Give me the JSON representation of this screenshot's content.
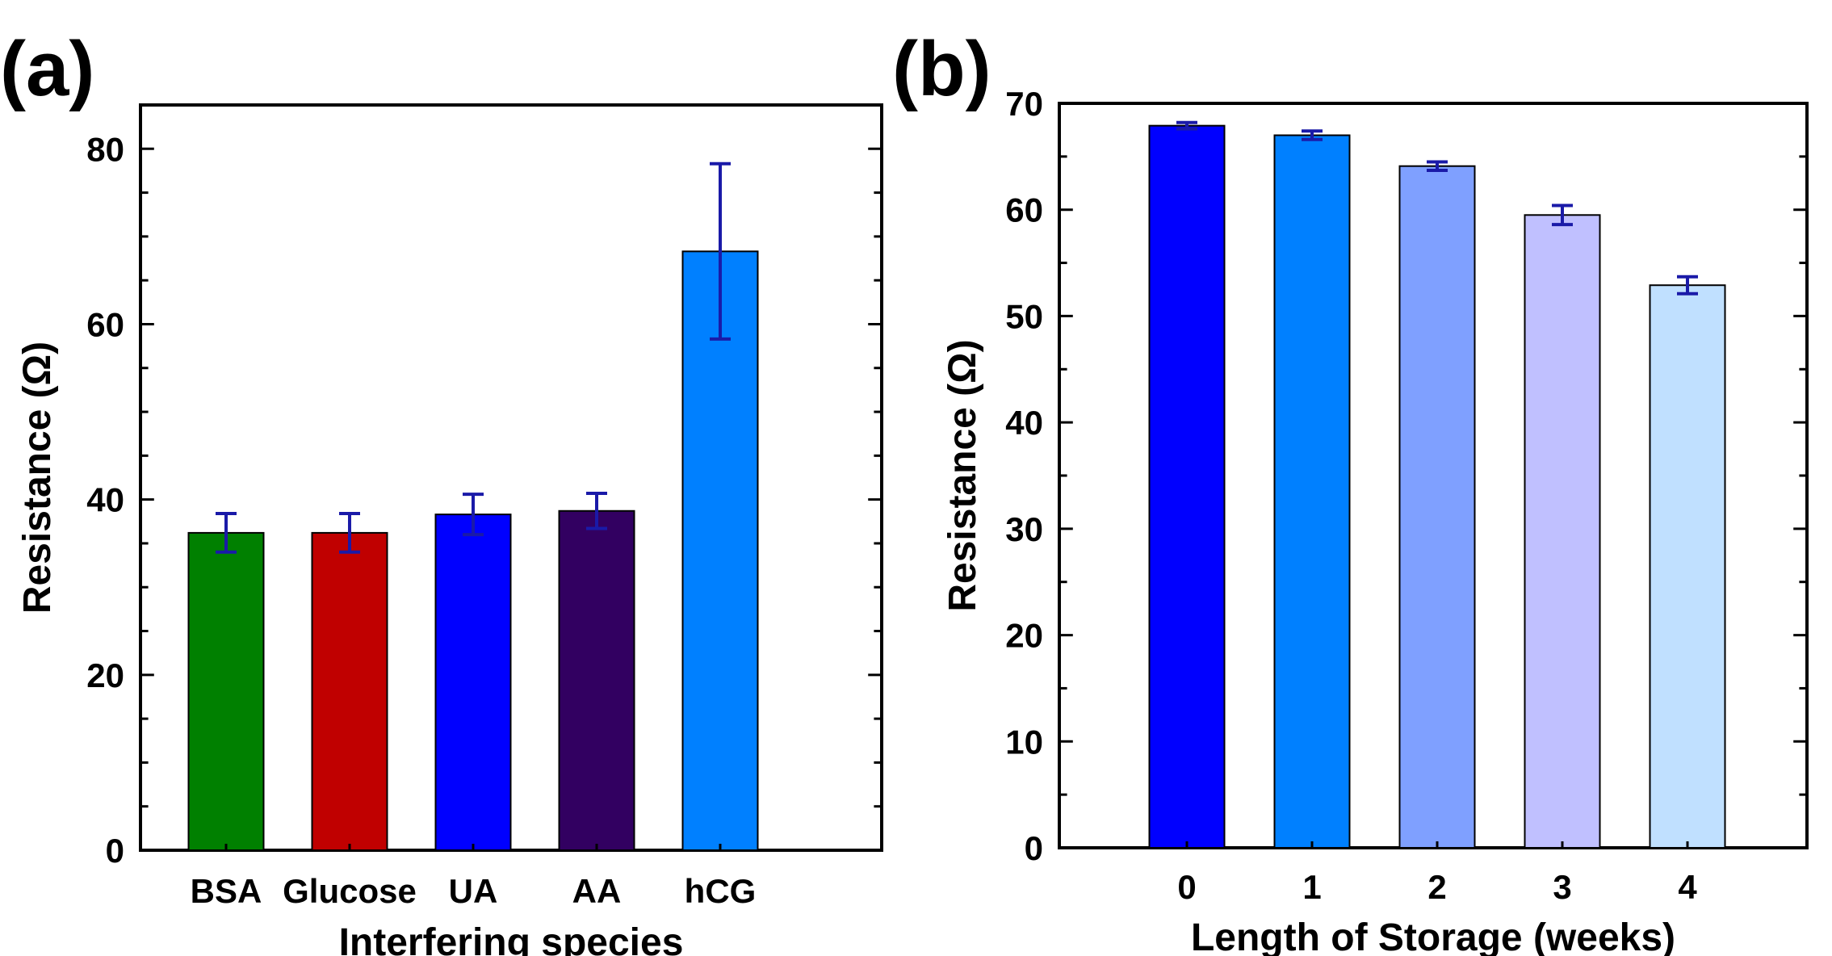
{
  "chart_data": [
    {
      "panel": "(a)",
      "type": "bar",
      "title": "",
      "xlabel": "Interfering species",
      "ylabel": "Resistance (Ω)",
      "ylim": [
        0,
        85
      ],
      "yticks": [
        "0",
        "20",
        "40",
        "60",
        "80"
      ],
      "categories": [
        "BSA",
        "Glucose",
        "UA",
        "AA",
        "hCG"
      ],
      "values": [
        36.2,
        36.2,
        38.3,
        38.7,
        68.3
      ],
      "errors": [
        2.2,
        2.2,
        2.3,
        2.0,
        10.0
      ],
      "colors": [
        "#008000",
        "#c00000",
        "#0000ff",
        "#320061",
        "#0080ff"
      ],
      "error_color": "#1a1aa8"
    },
    {
      "panel": "(b)",
      "type": "bar",
      "title": "",
      "xlabel": "Length of Storage (weeks)",
      "ylabel": "Resistance (Ω)",
      "ylim": [
        0,
        70
      ],
      "yticks": [
        "0",
        "10",
        "20",
        "30",
        "40",
        "50",
        "60",
        "70"
      ],
      "categories": [
        "0",
        "1",
        "2",
        "3",
        "4"
      ],
      "values": [
        67.9,
        67.0,
        64.1,
        59.5,
        52.9
      ],
      "errors": [
        0.3,
        0.4,
        0.4,
        0.9,
        0.8
      ],
      "colors": [
        "#0000ff",
        "#0080ff",
        "#7fa0ff",
        "#c0c0ff",
        "#c0e0ff"
      ],
      "error_color": "#1a1aa8"
    }
  ]
}
